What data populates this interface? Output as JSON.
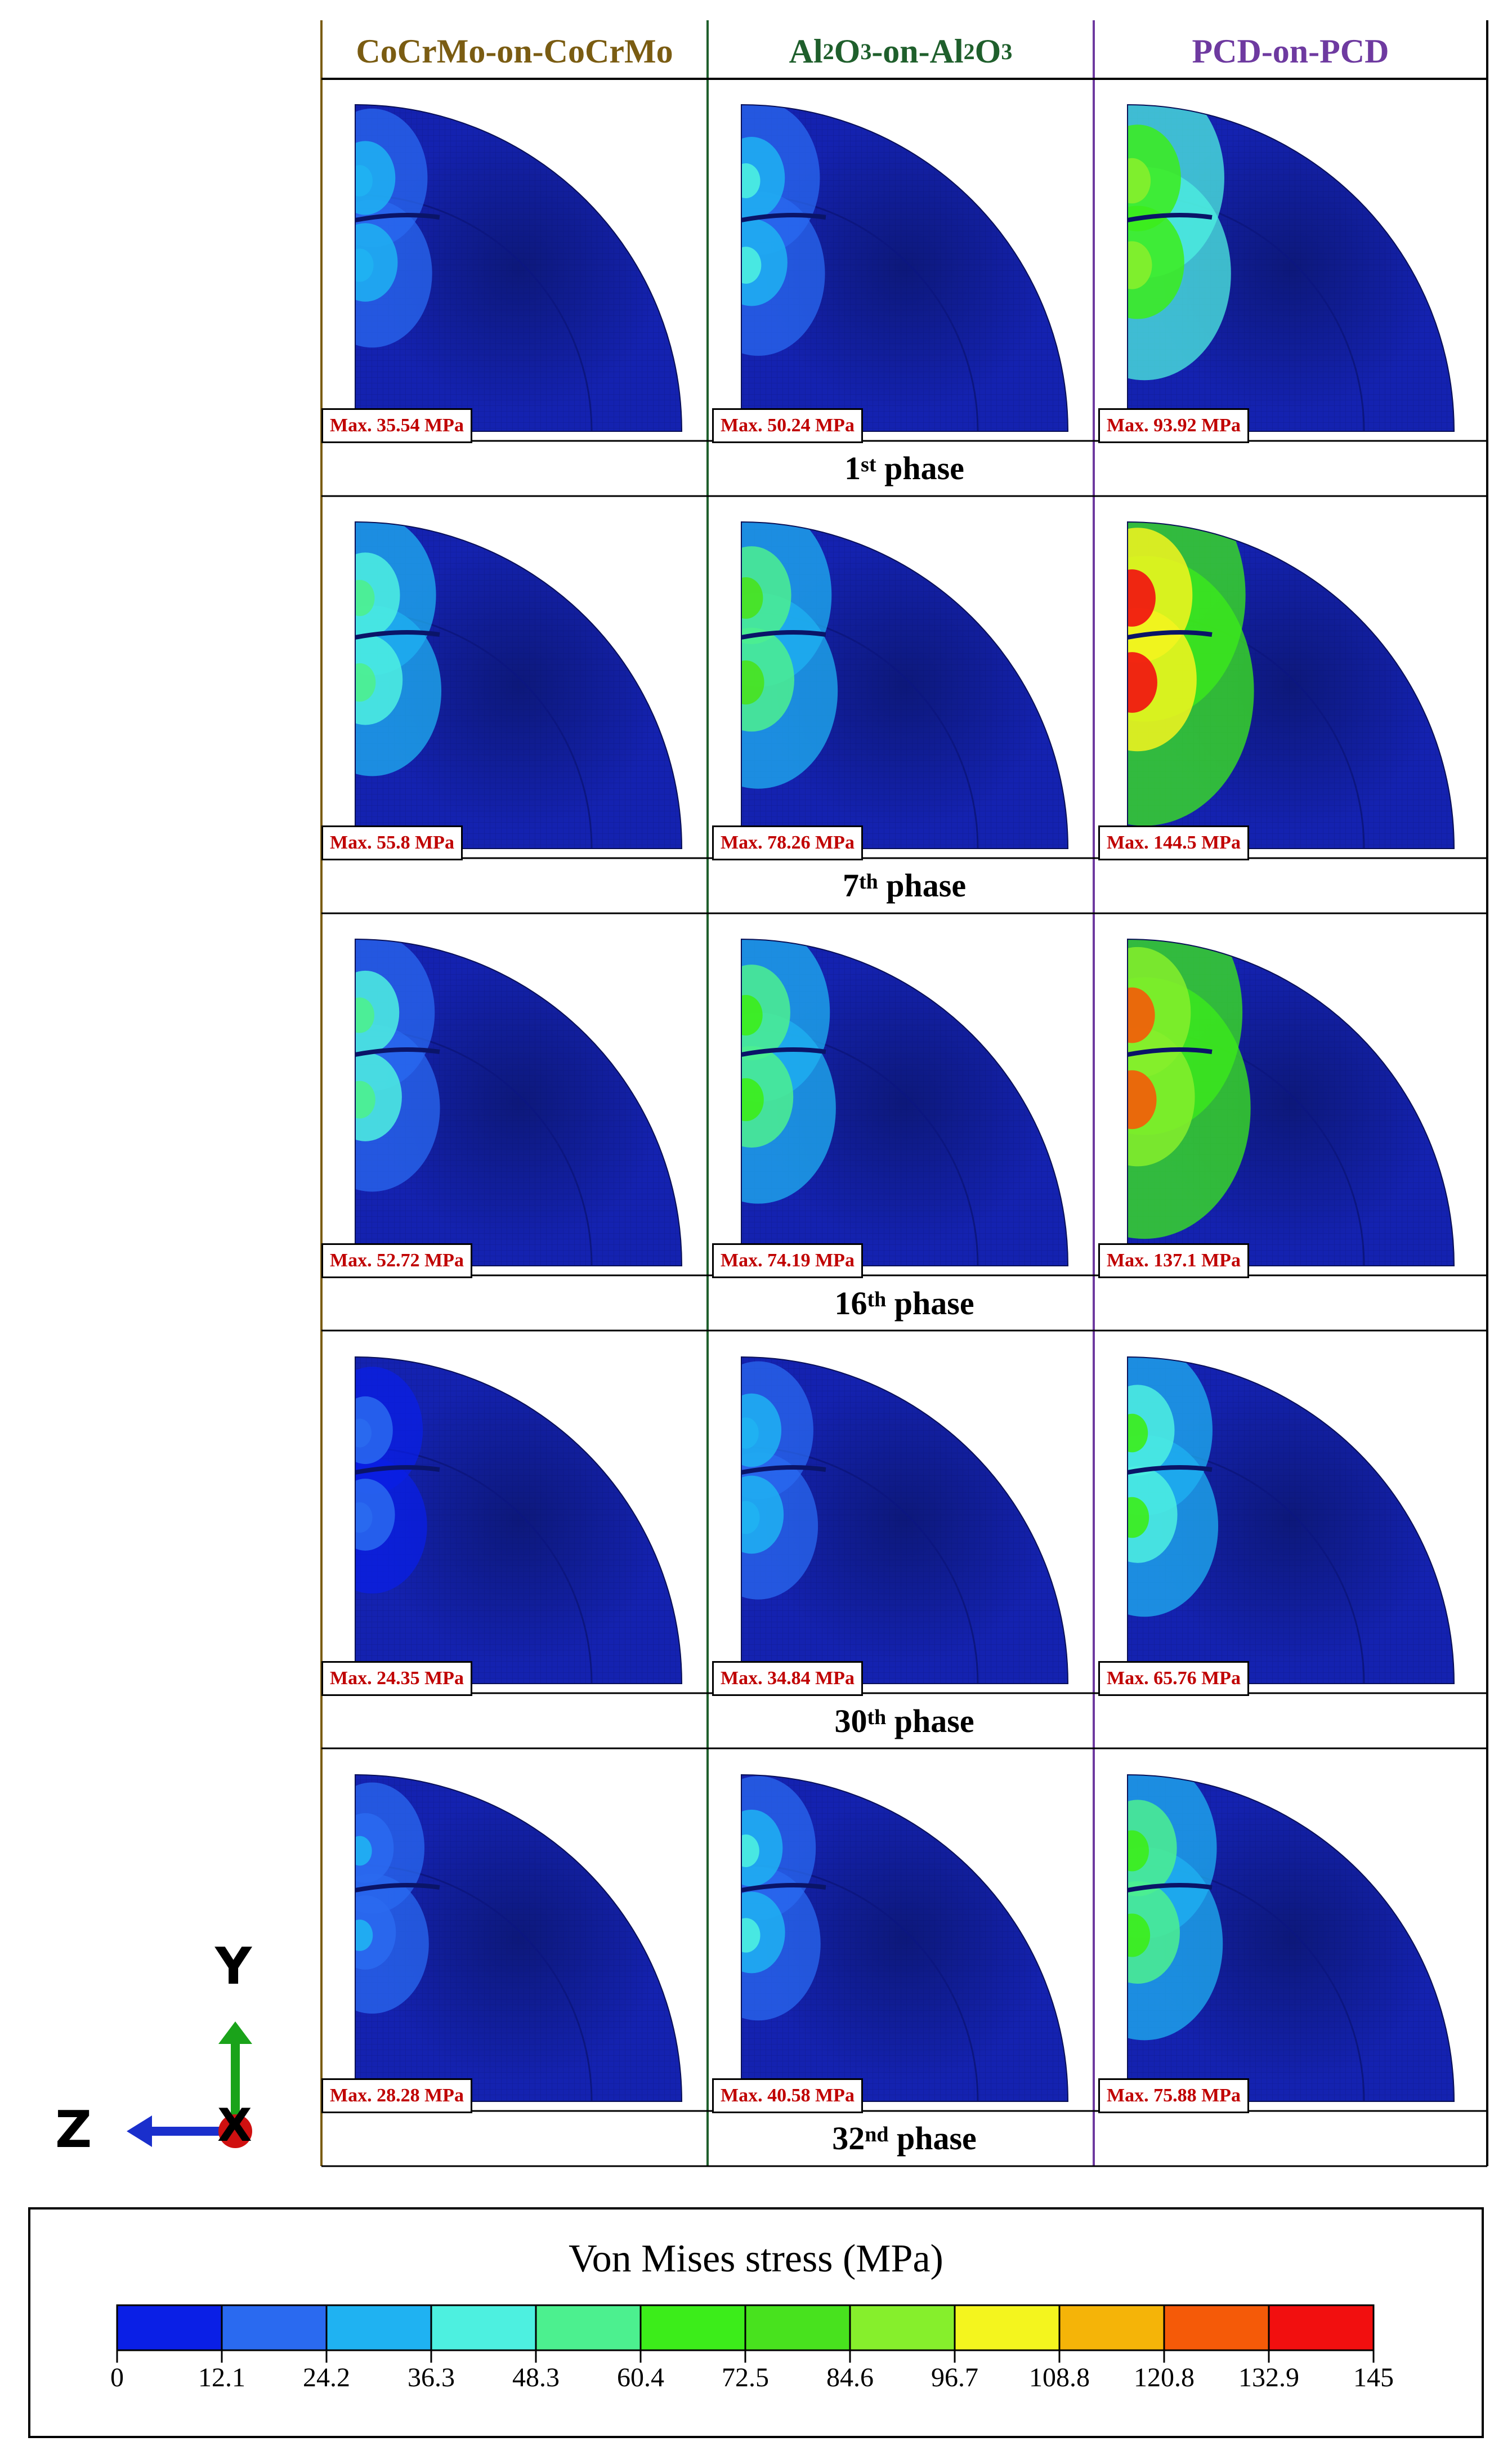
{
  "columns": [
    {
      "name": "CoCrMo-on-CoCrMo",
      "color": "#7a5c12"
    },
    {
      "name": "Al2O3-on-Al2O3",
      "color": "#1f5f2c"
    },
    {
      "name": "PCD-on-PCD",
      "color": "#6e3aa0"
    }
  ],
  "column_title_parts": {
    "c2": {
      "a": "Al",
      "b": "2",
      "c": "O",
      "d": "3",
      "e": "-on-Al",
      "f": "2",
      "g": "O",
      "h": "3"
    }
  },
  "phases": [
    {
      "num": "1",
      "sup": "st",
      "word": "phase",
      "max_labels": [
        "Max. 35.54 MPa",
        "Max. 50.24 MPa",
        "Max. 93.92 MPa"
      ],
      "max_values": [
        35.54,
        50.24,
        93.92
      ]
    },
    {
      "num": "7",
      "sup": "th",
      "word": "phase",
      "max_labels": [
        "Max. 55.8 MPa",
        "Max. 78.26 MPa",
        "Max. 144.5 MPa"
      ],
      "max_values": [
        55.8,
        78.26,
        144.5
      ]
    },
    {
      "num": "16",
      "sup": "th",
      "word": "phase",
      "max_labels": [
        "Max. 52.72 MPa",
        "Max. 74.19 MPa",
        "Max. 137.1 MPa"
      ],
      "max_values": [
        52.72,
        74.19,
        137.1
      ]
    },
    {
      "num": "30",
      "sup": "th",
      "word": "phase",
      "max_labels": [
        "Max. 24.35 MPa",
        "Max. 34.84 MPa",
        "Max. 65.76 MPa"
      ],
      "max_values": [
        24.35,
        34.84,
        65.76
      ]
    },
    {
      "num": "32",
      "sup": "nd",
      "word": "phase",
      "max_labels": [
        "Max. 28.28 MPa",
        "Max. 40.58 MPa",
        "Max. 75.88 MPa"
      ],
      "max_values": [
        28.28,
        40.58,
        75.88
      ]
    }
  ],
  "axes": {
    "y": "Y",
    "z": "Z",
    "x": "X",
    "y_color": "#1aa31a",
    "z_color": "#1a2fcc",
    "x_color": "#d01010"
  },
  "legend": {
    "title": "Von Mises stress (MPa)",
    "ticks": [
      "0",
      "12.1",
      "24.2",
      "36.3",
      "48.3",
      "60.4",
      "72.5",
      "84.6",
      "96.7",
      "108.8",
      "120.8",
      "132.9",
      "145"
    ],
    "colors": [
      "#0a1fe6",
      "#2a6af0",
      "#1fb2f2",
      "#4df0e0",
      "#4cf08f",
      "#3ced1a",
      "#48e21e",
      "#86ef2c",
      "#f4f51e",
      "#f5b408",
      "#f55a08",
      "#f20f0f"
    ]
  },
  "mesh_colors": {
    "base": "#1422b0",
    "dark": "#0c1680"
  }
}
